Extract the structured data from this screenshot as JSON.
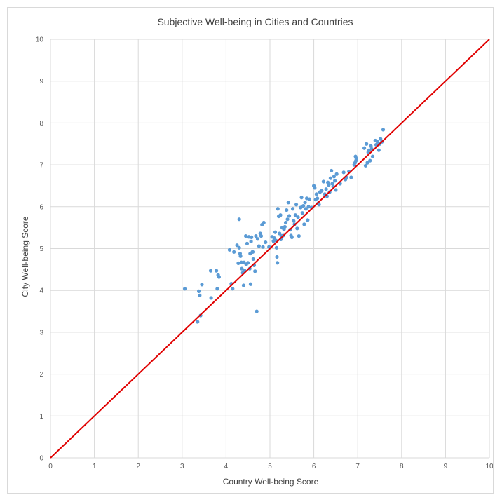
{
  "chart_data": {
    "type": "scatter",
    "title": "Subjective Well-being in Cities and Countries",
    "xlabel": "Country Well-being Score",
    "ylabel": "City Well-being Score",
    "xlim": [
      0,
      10
    ],
    "ylim": [
      0,
      10
    ],
    "xticks": [
      0,
      1,
      2,
      3,
      4,
      5,
      6,
      7,
      8,
      9,
      10
    ],
    "yticks": [
      0,
      1,
      2,
      3,
      4,
      5,
      6,
      7,
      8,
      9,
      10
    ],
    "grid": true,
    "legend": "none",
    "colors": {
      "points": "#5b9bd5",
      "line": "#e00000",
      "grid": "#d9d9d9"
    },
    "reference_line": {
      "x": [
        0,
        10
      ],
      "y": [
        0,
        10
      ]
    },
    "series": [
      {
        "points": [
          [
            3.06,
            4.04
          ],
          [
            3.35,
            3.25
          ],
          [
            3.38,
            3.98
          ],
          [
            3.4,
            3.88
          ],
          [
            3.42,
            3.4
          ],
          [
            3.45,
            4.14
          ],
          [
            3.65,
            4.47
          ],
          [
            3.66,
            3.82
          ],
          [
            3.78,
            4.47
          ],
          [
            3.8,
            4.04
          ],
          [
            3.82,
            4.37
          ],
          [
            3.84,
            4.32
          ],
          [
            4.08,
            4.97
          ],
          [
            4.12,
            4.16
          ],
          [
            4.15,
            4.04
          ],
          [
            4.18,
            4.92
          ],
          [
            4.25,
            5.08
          ],
          [
            4.28,
            4.65
          ],
          [
            4.3,
            5.7
          ],
          [
            4.3,
            5.02
          ],
          [
            4.32,
            4.88
          ],
          [
            4.33,
            4.82
          ],
          [
            4.35,
            4.67
          ],
          [
            4.36,
            4.52
          ],
          [
            4.38,
            4.42
          ],
          [
            4.4,
            4.12
          ],
          [
            4.41,
            4.67
          ],
          [
            4.42,
            4.48
          ],
          [
            4.45,
            5.3
          ],
          [
            4.46,
            4.62
          ],
          [
            4.48,
            5.12
          ],
          [
            4.5,
            4.66
          ],
          [
            4.52,
            5.28
          ],
          [
            4.54,
            4.52
          ],
          [
            4.55,
            4.88
          ],
          [
            4.56,
            4.15
          ],
          [
            4.57,
            5.17
          ],
          [
            4.58,
            5.27
          ],
          [
            4.6,
            4.92
          ],
          [
            4.61,
            4.92
          ],
          [
            4.62,
            4.75
          ],
          [
            4.64,
            4.6
          ],
          [
            4.66,
            4.46
          ],
          [
            4.68,
            5.3
          ],
          [
            4.7,
            3.5
          ],
          [
            4.72,
            5.23
          ],
          [
            4.75,
            5.06
          ],
          [
            4.78,
            5.36
          ],
          [
            4.8,
            5.3
          ],
          [
            4.82,
            5.57
          ],
          [
            4.84,
            5.04
          ],
          [
            4.86,
            5.62
          ],
          [
            4.9,
            5.15
          ],
          [
            4.98,
            5.04
          ],
          [
            5.05,
            5.28
          ],
          [
            5.08,
            5.18
          ],
          [
            5.1,
            5.25
          ],
          [
            5.12,
            5.39
          ],
          [
            5.14,
            5.19
          ],
          [
            5.15,
            5.02
          ],
          [
            5.16,
            4.8
          ],
          [
            5.17,
            4.66
          ],
          [
            5.18,
            5.95
          ],
          [
            5.2,
            5.77
          ],
          [
            5.22,
            5.36
          ],
          [
            5.24,
            5.8
          ],
          [
            5.25,
            5.22
          ],
          [
            5.26,
            5.3
          ],
          [
            5.28,
            5.5
          ],
          [
            5.3,
            5.31
          ],
          [
            5.32,
            5.46
          ],
          [
            5.34,
            5.52
          ],
          [
            5.36,
            5.62
          ],
          [
            5.38,
            5.92
          ],
          [
            5.4,
            5.7
          ],
          [
            5.42,
            6.1
          ],
          [
            5.44,
            5.78
          ],
          [
            5.46,
            5.45
          ],
          [
            5.48,
            5.31
          ],
          [
            5.5,
            5.27
          ],
          [
            5.52,
            5.95
          ],
          [
            5.54,
            5.66
          ],
          [
            5.56,
            5.58
          ],
          [
            5.58,
            5.8
          ],
          [
            5.6,
            6.05
          ],
          [
            5.62,
            5.48
          ],
          [
            5.64,
            5.75
          ],
          [
            5.66,
            5.3
          ],
          [
            5.7,
            5.98
          ],
          [
            5.72,
            6.22
          ],
          [
            5.74,
            5.85
          ],
          [
            5.76,
            6.02
          ],
          [
            5.78,
            5.58
          ],
          [
            5.8,
            6.1
          ],
          [
            5.82,
            5.95
          ],
          [
            5.84,
            6.2
          ],
          [
            5.86,
            5.68
          ],
          [
            5.88,
            6.0
          ],
          [
            5.9,
            6.18
          ],
          [
            5.95,
            5.98
          ],
          [
            6.0,
            6.5
          ],
          [
            6.02,
            6.45
          ],
          [
            6.04,
            6.17
          ],
          [
            6.06,
            6.3
          ],
          [
            6.08,
            6.2
          ],
          [
            6.1,
            6.08
          ],
          [
            6.12,
            6.05
          ],
          [
            6.14,
            6.35
          ],
          [
            6.18,
            6.38
          ],
          [
            6.22,
            6.6
          ],
          [
            6.25,
            6.3
          ],
          [
            6.28,
            6.42
          ],
          [
            6.3,
            6.25
          ],
          [
            6.32,
            6.58
          ],
          [
            6.34,
            6.52
          ],
          [
            6.36,
            6.35
          ],
          [
            6.38,
            6.68
          ],
          [
            6.4,
            6.86
          ],
          [
            6.42,
            6.55
          ],
          [
            6.44,
            6.48
          ],
          [
            6.46,
            6.72
          ],
          [
            6.48,
            6.62
          ],
          [
            6.5,
            6.4
          ],
          [
            6.52,
            6.78
          ],
          [
            6.6,
            6.55
          ],
          [
            6.68,
            6.82
          ],
          [
            6.72,
            6.65
          ],
          [
            6.74,
            6.7
          ],
          [
            6.8,
            6.84
          ],
          [
            6.85,
            6.7
          ],
          [
            6.92,
            7.0
          ],
          [
            6.94,
            7.05
          ],
          [
            6.95,
            7.2
          ],
          [
            6.96,
            7.1
          ],
          [
            6.97,
            7.15
          ],
          [
            7.15,
            7.4
          ],
          [
            7.18,
            6.98
          ],
          [
            7.2,
            7.5
          ],
          [
            7.22,
            7.05
          ],
          [
            7.24,
            7.3
          ],
          [
            7.26,
            7.35
          ],
          [
            7.28,
            7.1
          ],
          [
            7.3,
            7.45
          ],
          [
            7.32,
            7.38
          ],
          [
            7.34,
            7.2
          ],
          [
            7.4,
            7.58
          ],
          [
            7.42,
            7.48
          ],
          [
            7.45,
            7.55
          ],
          [
            7.48,
            7.35
          ],
          [
            7.5,
            7.5
          ],
          [
            7.52,
            7.62
          ],
          [
            7.55,
            7.55
          ],
          [
            7.58,
            7.84
          ]
        ]
      }
    ]
  }
}
